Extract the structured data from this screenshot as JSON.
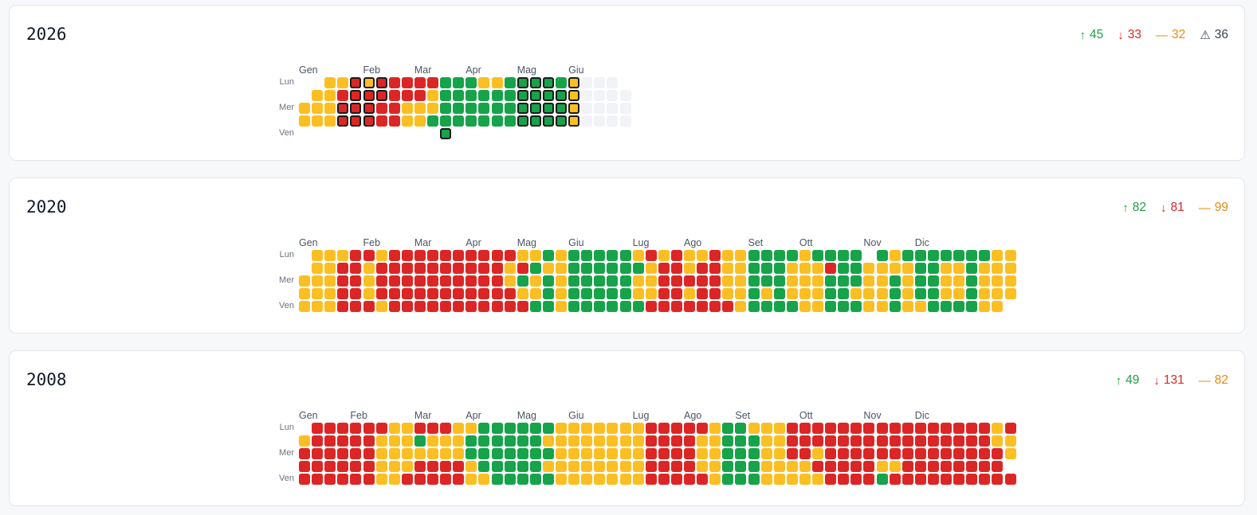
{
  "colors": {
    "up": "#16a34a",
    "down": "#dc2626",
    "flat": "#fbbf24",
    "future": "#f1f3f6"
  },
  "day_labels": [
    "Lun",
    "Mer",
    "Ven"
  ],
  "cards": [
    {
      "year": "2026",
      "stats": [
        {
          "kind": "up",
          "icon": "↑",
          "value": "45"
        },
        {
          "kind": "down",
          "icon": "↓",
          "value": "33"
        },
        {
          "kind": "flat",
          "icon": "—",
          "value": "32"
        },
        {
          "kind": "warn",
          "icon": "⚠",
          "value": "36"
        }
      ],
      "months": [
        {
          "label": "Gen",
          "week": 0
        },
        {
          "label": "Feb",
          "week": 5
        },
        {
          "label": "Mar",
          "week": 9
        },
        {
          "label": "Apr",
          "week": 13
        },
        {
          "label": "Mag",
          "week": 17
        },
        {
          "label": "Giu",
          "week": 21
        }
      ],
      "weeks": [
        "--yy",
        "-yyy",
        "yyyy",
        "yrRR",
        "RRRR",
        "YRRR",
        "RRrr",
        "rrrr",
        "rryy",
        "rryy",
        "ryyg",
        "ggggG",
        "gggg",
        "gggg",
        "yggg",
        "yggg",
        "gggg",
        "GGGG",
        "GGGG",
        "GGGG",
        "gGGG",
        "YYYY",
        "eeee",
        "eeee",
        "eeee",
        "-eee"
      ]
    },
    {
      "year": "2020",
      "stats": [
        {
          "kind": "up",
          "icon": "↑",
          "value": "82"
        },
        {
          "kind": "down",
          "icon": "↓",
          "value": "81"
        },
        {
          "kind": "flat",
          "icon": "—",
          "value": "99"
        }
      ],
      "months": [
        {
          "label": "Gen",
          "week": 0
        },
        {
          "label": "Feb",
          "week": 5
        },
        {
          "label": "Mar",
          "week": 9
        },
        {
          "label": "Apr",
          "week": 13
        },
        {
          "label": "Mag",
          "week": 17
        },
        {
          "label": "Giu",
          "week": 21
        },
        {
          "label": "Lug",
          "week": 26
        },
        {
          "label": "Ago",
          "week": 30
        },
        {
          "label": "Set",
          "week": 35
        },
        {
          "label": "Ott",
          "week": 39
        },
        {
          "label": "Nov",
          "week": 44
        },
        {
          "label": "Dic",
          "week": 48
        }
      ],
      "weeks": [
        "--yyy",
        "yyyyy",
        "yyyyy",
        "yrrrr",
        "rrrrr",
        "ryyyr",
        "yrrry",
        "rrrrr",
        "rrrrr",
        "rrrrr",
        "rrrrr",
        "rrrrr",
        "rrrrr",
        "rrrrr",
        "rrrrr",
        "rrrrr",
        "ryyrr",
        "yrgyr",
        "ygyyg",
        "gyggg",
        "yyyyy",
        "ggggg",
        "ggggg",
        "ggggg",
        "ggggg",
        "ggggg",
        "ygyyg",
        "ryyyr",
        "yrrrr",
        "rrrrr",
        "yyryr",
        "yrrrr",
        "rrrrr",
        "yyyyr",
        "yyyyy",
        "ggggg",
        "gggyg",
        "ggggg",
        "gyyyg",
        "yyyyy",
        "gyyyy",
        "grggg",
        "ggggg",
        "gggyg",
        "-yyyy",
        "gyyyy",
        "yyggg",
        "gyyyy",
        "ggggy",
        "ggggg",
        "gyyyg",
        "gyyyg",
        "ggggg",
        "gyyyy",
        "yyyyy",
        "yyyy-"
      ]
    },
    {
      "year": "2008",
      "stats": [
        {
          "kind": "up",
          "icon": "↑",
          "value": "49"
        },
        {
          "kind": "down",
          "icon": "↓",
          "value": "131"
        },
        {
          "kind": "flat",
          "icon": "—",
          "value": "82"
        }
      ],
      "months": [
        {
          "label": "Gen",
          "week": 0
        },
        {
          "label": "Feb",
          "week": 4
        },
        {
          "label": "Mar",
          "week": 9
        },
        {
          "label": "Apr",
          "week": 13
        },
        {
          "label": "Mag",
          "week": 17
        },
        {
          "label": "Giu",
          "week": 21
        },
        {
          "label": "Lug",
          "week": 26
        },
        {
          "label": "Ago",
          "week": 30
        },
        {
          "label": "Set",
          "week": 34
        },
        {
          "label": "Ott",
          "week": 39
        },
        {
          "label": "Nov",
          "week": 44
        },
        {
          "label": "Dic",
          "week": 48
        }
      ],
      "weeks": [
        "-yrrr",
        "rrrrr",
        "rrrrr",
        "rrrrr",
        "rrrrr",
        "rrrrr",
        "ryyyy",
        "yyyyy",
        "yyyyr",
        "rgyrr",
        "ryyrr",
        "ryyrr",
        "yyyrr",
        "yggyy",
        "ggggy",
        "ggggg",
        "ggggg",
        "ggggg",
        "ggggg",
        "gygyg",
        "yyyyy",
        "yyyyy",
        "yyyyy",
        "yyyyy",
        "yyyyy",
        "yyyyy",
        "yyyyy",
        "rrrrr",
        "rrrrr",
        "rrrrr",
        "rrrrr",
        "ryyyr",
        "yyyyy",
        "ggggg",
        "ggggg",
        "ygggg",
        "yyyyy",
        "yyyyy",
        "rrryy",
        "rrryy",
        "rryry",
        "rrrrr",
        "rrrrr",
        "rrrrr",
        "rrrrr",
        "rrryg",
        "rrryr",
        "rrrrr",
        "rrrrr",
        "rrrrr",
        "rrrrr",
        "rrrrr",
        "rrrrr",
        "rrrrr",
        "yyrrr",
        "ryy-r"
      ]
    }
  ]
}
